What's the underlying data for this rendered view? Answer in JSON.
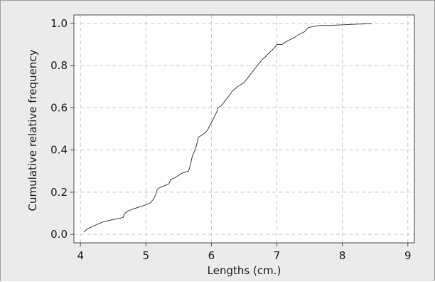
{
  "chart_data": {
    "type": "line",
    "title": "",
    "xlabel": "Lengths (cm.)",
    "ylabel": "Cumulative relative frequency",
    "xlim": [
      3.9,
      9.1
    ],
    "ylim": [
      -0.04,
      1.04
    ],
    "xticks": [
      4,
      5,
      6,
      7,
      8,
      9
    ],
    "xtick_labels": [
      "4",
      "5",
      "6",
      "7",
      "8",
      "9"
    ],
    "yticks": [
      0.0,
      0.2,
      0.4,
      0.6,
      0.8,
      1.0
    ],
    "ytick_labels": [
      "0.0",
      "0.2",
      "0.4",
      "0.6",
      "0.8",
      "1.0"
    ],
    "grid": true,
    "line_color": "#3a3a3a",
    "grid_color": "#c8c8c8",
    "series": [
      {
        "x": [
          4.05,
          4.1,
          4.2,
          4.35,
          4.5,
          4.65,
          4.68,
          4.72,
          4.8,
          4.9,
          5.0,
          5.07,
          5.12,
          5.15,
          5.17,
          5.2,
          5.28,
          5.35,
          5.38,
          5.45,
          5.5,
          5.55,
          5.65,
          5.68,
          5.7,
          5.72,
          5.75,
          5.77,
          5.8,
          5.85,
          5.9,
          5.93,
          5.95,
          6.0,
          6.05,
          6.08,
          6.1,
          6.15,
          6.2,
          6.25,
          6.28,
          6.32,
          6.4,
          6.5,
          6.55,
          6.6,
          6.65,
          6.7,
          6.78,
          6.82,
          6.88,
          6.95,
          7.0,
          7.08,
          7.12,
          7.18,
          7.25,
          7.3,
          7.35,
          7.42,
          7.48,
          7.55,
          7.65,
          7.8,
          8.0,
          8.2,
          8.35,
          8.45
        ],
        "y": [
          0.01,
          0.025,
          0.04,
          0.06,
          0.07,
          0.08,
          0.1,
          0.11,
          0.12,
          0.13,
          0.14,
          0.15,
          0.17,
          0.19,
          0.21,
          0.22,
          0.23,
          0.24,
          0.26,
          0.27,
          0.28,
          0.29,
          0.3,
          0.33,
          0.36,
          0.38,
          0.4,
          0.42,
          0.46,
          0.47,
          0.48,
          0.49,
          0.5,
          0.53,
          0.56,
          0.58,
          0.6,
          0.61,
          0.63,
          0.65,
          0.66,
          0.68,
          0.7,
          0.72,
          0.74,
          0.76,
          0.78,
          0.8,
          0.83,
          0.84,
          0.86,
          0.88,
          0.9,
          0.9,
          0.91,
          0.92,
          0.93,
          0.94,
          0.95,
          0.96,
          0.98,
          0.985,
          0.99,
          0.99,
          0.993,
          0.996,
          0.998,
          1.0
        ]
      }
    ]
  }
}
